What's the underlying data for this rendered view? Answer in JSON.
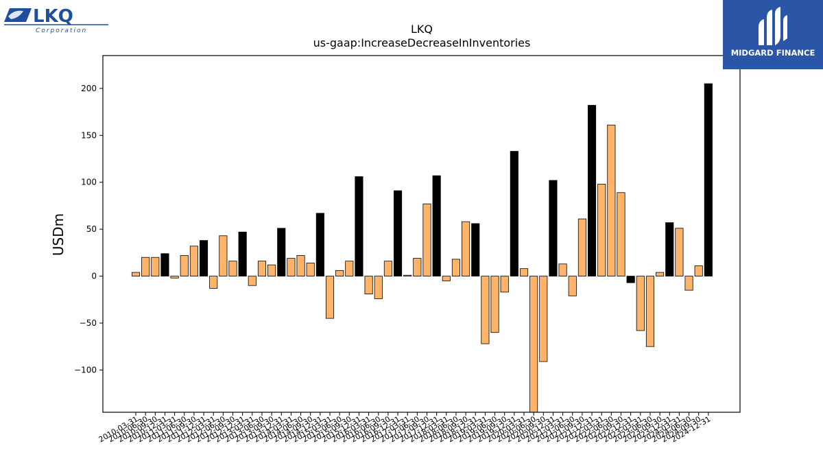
{
  "brand": {
    "name": "LKQ",
    "sub": "Corporation",
    "color": "#1f4f9c"
  },
  "partner": {
    "name": "MIDGARD FINANCE",
    "bg": "#2b56a8"
  },
  "colors": {
    "quarter": "#fdb46a",
    "annual": "#000000",
    "axis": "#000000"
  },
  "chart_data": {
    "type": "bar",
    "title": "LKQ",
    "subtitle": "us-gaap:IncreaseDecreaseInInventories",
    "ylabel": "USDm",
    "xlabel": "",
    "ylim": [
      -145,
      235
    ],
    "yticks": [
      -100,
      -50,
      0,
      50,
      100,
      150,
      200
    ],
    "grid": false,
    "categories": [
      "2010-03-31",
      "2010-06-30",
      "2010-09-30",
      "2010-12-31",
      "2011-03-31",
      "2011-06-30",
      "2011-09-30",
      "2011-12-31",
      "2012-03-31",
      "2012-06-30",
      "2012-09-30",
      "2012-12-31",
      "2013-03-31",
      "2013-06-30",
      "2013-09-30",
      "2013-12-31",
      "2014-03-31",
      "2014-06-30",
      "2014-09-30",
      "2014-12-31",
      "2015-03-31",
      "2015-06-30",
      "2015-09-30",
      "2015-12-31",
      "2016-03-31",
      "2016-06-30",
      "2016-09-30",
      "2016-12-31",
      "2017-03-31",
      "2017-06-30",
      "2017-09-30",
      "2017-12-31",
      "2018-03-31",
      "2018-06-30",
      "2018-09-30",
      "2018-12-31",
      "2019-03-31",
      "2019-06-30",
      "2019-09-30",
      "2019-12-31",
      "2020-03-31",
      "2020-06-30",
      "2020-09-30",
      "2020-12-31",
      "2021-03-31",
      "2021-06-30",
      "2021-09-30",
      "2021-12-31",
      "2022-03-31",
      "2022-06-30",
      "2022-09-30",
      "2022-12-31",
      "2023-03-31",
      "2023-06-30",
      "2023-09-30",
      "2023-12-31",
      "2024-03-31",
      "2024-06-30",
      "2024-09-30",
      "2024-12-31"
    ],
    "values": [
      4,
      20,
      20,
      24,
      -2,
      22,
      32,
      38,
      -13,
      43,
      16,
      47,
      -10,
      16,
      12,
      51,
      19,
      22,
      14,
      67,
      -45,
      6,
      16,
      106,
      -19,
      -24,
      16,
      91,
      1,
      19,
      77,
      107,
      -5,
      18,
      58,
      56,
      -72,
      -60,
      -17,
      133,
      8,
      -145,
      -91,
      102,
      13,
      -21,
      61,
      182,
      98,
      161,
      89,
      -7,
      -58,
      -75,
      4,
      57,
      51,
      -15,
      11,
      205
    ],
    "annual": [
      false,
      false,
      false,
      true,
      false,
      false,
      false,
      true,
      false,
      false,
      false,
      true,
      false,
      false,
      false,
      true,
      false,
      false,
      false,
      true,
      false,
      false,
      false,
      true,
      false,
      false,
      false,
      true,
      false,
      false,
      false,
      true,
      false,
      false,
      false,
      true,
      false,
      false,
      false,
      true,
      false,
      false,
      false,
      true,
      false,
      false,
      false,
      true,
      false,
      false,
      false,
      true,
      false,
      false,
      false,
      true,
      false,
      false,
      false,
      true
    ]
  }
}
